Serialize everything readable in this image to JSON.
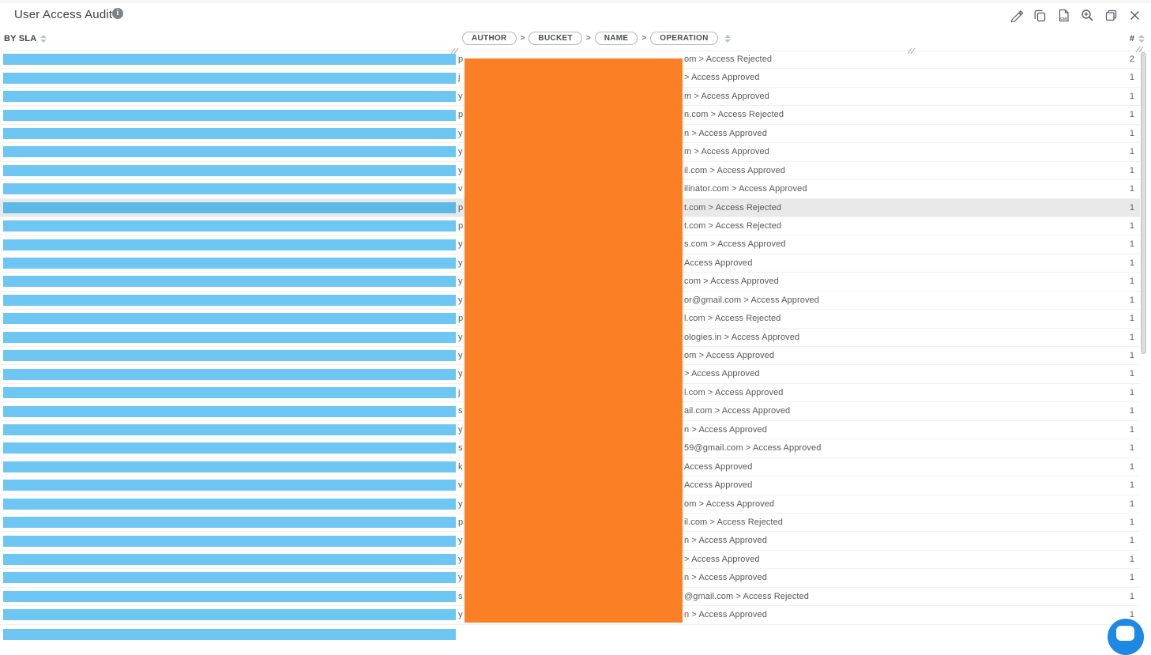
{
  "header": {
    "title": "User Access Audit",
    "info_icon": "info-circle",
    "toolbar_icons": [
      "edit-pencil",
      "copy",
      "export-csv",
      "zoom-in",
      "window-maximize",
      "close"
    ]
  },
  "table": {
    "sla_header": "BY SLA",
    "path_header_pills": [
      "AUTHOR",
      "BUCKET",
      "NAME",
      "OPERATION"
    ],
    "path_separator": ">",
    "count_header": "#",
    "colors": {
      "sla_bar": "#6ec6f2",
      "sla_bar_highlighted": "#5cb9e6",
      "row_highlight_bg": "#e9e9e9",
      "redaction_overlay": "#fb8025"
    },
    "rows": [
      {
        "prefix": "p",
        "suffix": "om > Access Rejected",
        "count": "2",
        "highlighted": false
      },
      {
        "prefix": "j",
        "suffix": "> Access Approved",
        "count": "1",
        "highlighted": false
      },
      {
        "prefix": "y",
        "suffix": "m > Access Approved",
        "count": "1",
        "highlighted": false
      },
      {
        "prefix": "p",
        "suffix": "n.com > Access Rejected",
        "count": "1",
        "highlighted": false
      },
      {
        "prefix": "y",
        "suffix": "n > Access Approved",
        "count": "1",
        "highlighted": false
      },
      {
        "prefix": "y",
        "suffix": "m > Access Approved",
        "count": "1",
        "highlighted": false
      },
      {
        "prefix": "y",
        "suffix": "il.com > Access Approved",
        "count": "1",
        "highlighted": false
      },
      {
        "prefix": "v",
        "suffix": "ilinator.com > Access Approved",
        "count": "1",
        "highlighted": false
      },
      {
        "prefix": "p",
        "suffix": "t.com > Access Rejected",
        "count": "1",
        "highlighted": true
      },
      {
        "prefix": "p",
        "suffix": "t.com > Access Rejected",
        "count": "1",
        "highlighted": false
      },
      {
        "prefix": "y",
        "suffix": "s.com > Access Approved",
        "count": "1",
        "highlighted": false
      },
      {
        "prefix": "y",
        "suffix": "Access Approved",
        "count": "1",
        "highlighted": false
      },
      {
        "prefix": "y",
        "suffix": "com > Access Approved",
        "count": "1",
        "highlighted": false
      },
      {
        "prefix": "y",
        "suffix": "or@gmail.com > Access Approved",
        "count": "1",
        "highlighted": false
      },
      {
        "prefix": "p",
        "suffix": "l.com > Access Rejected",
        "count": "1",
        "highlighted": false
      },
      {
        "prefix": "y",
        "suffix": "ologies.in > Access Approved",
        "count": "1",
        "highlighted": false
      },
      {
        "prefix": "y",
        "suffix": "om > Access Approved",
        "count": "1",
        "highlighted": false
      },
      {
        "prefix": "y",
        "suffix": "> Access Approved",
        "count": "1",
        "highlighted": false
      },
      {
        "prefix": "j",
        "suffix": "l.com > Access Approved",
        "count": "1",
        "highlighted": false
      },
      {
        "prefix": "s",
        "suffix": "ail.com > Access Approved",
        "count": "1",
        "highlighted": false
      },
      {
        "prefix": "y",
        "suffix": "n > Access Approved",
        "count": "1",
        "highlighted": false
      },
      {
        "prefix": "s",
        "suffix": "59@gmail.com > Access Approved",
        "count": "1",
        "highlighted": false
      },
      {
        "prefix": "k",
        "suffix": "Access Approved",
        "count": "1",
        "highlighted": false
      },
      {
        "prefix": "v",
        "suffix": "Access Approved",
        "count": "1",
        "highlighted": false
      },
      {
        "prefix": "y",
        "suffix": "om > Access Approved",
        "count": "1",
        "highlighted": false
      },
      {
        "prefix": "p",
        "suffix": "il.com > Access Rejected",
        "count": "1",
        "highlighted": false
      },
      {
        "prefix": "y",
        "suffix": "n > Access Approved",
        "count": "1",
        "highlighted": false
      },
      {
        "prefix": "y",
        "suffix": "> Access Approved",
        "count": "1",
        "highlighted": false
      },
      {
        "prefix": "y",
        "suffix": "n > Access Approved",
        "count": "1",
        "highlighted": false
      },
      {
        "prefix": "s",
        "suffix": "@gmail.com > Access Rejected",
        "count": "1",
        "highlighted": false
      },
      {
        "prefix": "y",
        "suffix": "n > Access Approved",
        "count": "1",
        "highlighted": false
      }
    ]
  },
  "chat_widget": {
    "icon": "chat-bubble",
    "color": "#1e88e5"
  }
}
